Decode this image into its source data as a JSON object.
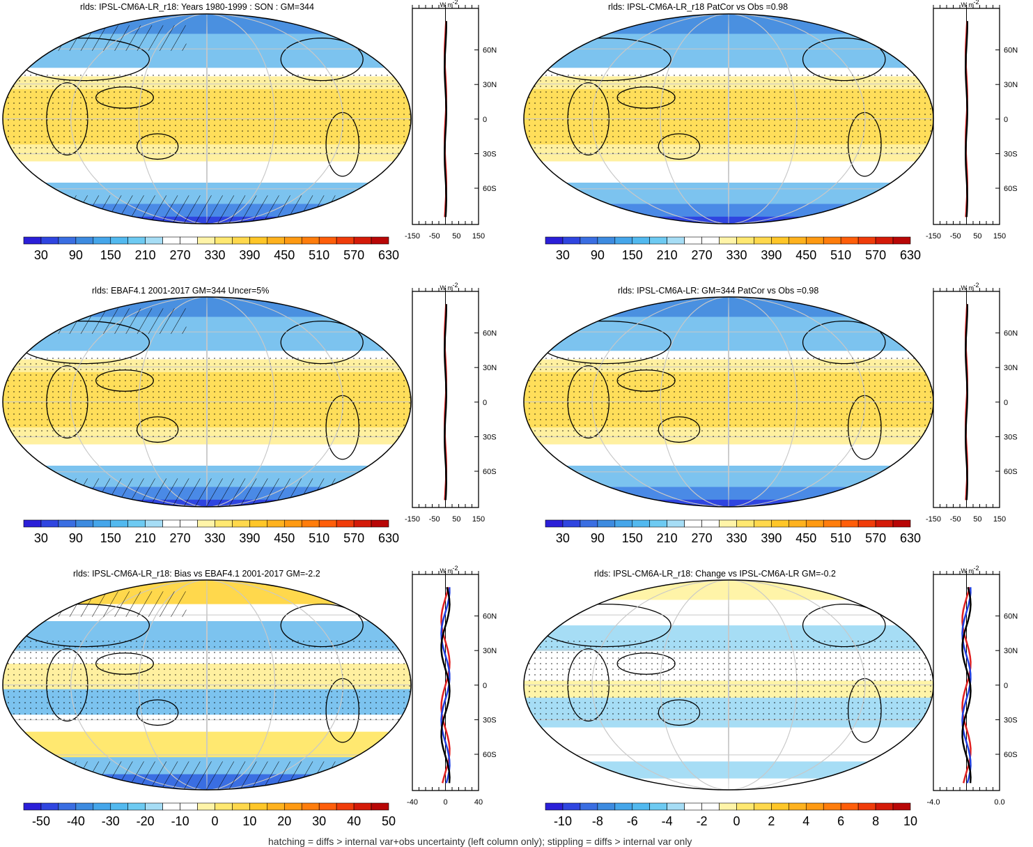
{
  "panels": [
    {
      "id": "model-mean",
      "title": "rlds: IPSL-CM6A-LR_r18: Years 1980-1999 : SON : GM=344",
      "kind": "absolute",
      "colorbar_key": "absolute",
      "profile": {
        "unit": "W m",
        "unit_sup": "-2",
        "x_ticks": [
          "-150",
          "-50",
          "50",
          "150"
        ],
        "lat_ticks": [
          "60N",
          "30N",
          "0",
          "30S",
          "60S"
        ],
        "lines": [
          {
            "color": "#e02020",
            "role": "obs"
          },
          {
            "color": "#000000",
            "role": "model"
          }
        ]
      }
    },
    {
      "id": "patcor-model",
      "title": "rlds: IPSL-CM6A-LR_r18 PatCor vs Obs =0.98",
      "kind": "absolute",
      "colorbar_key": "absolute",
      "profile": {
        "unit": "W m",
        "unit_sup": "-2",
        "x_ticks": [
          "-150",
          "-50",
          "50",
          "150"
        ],
        "lat_ticks": [
          "60N",
          "30N",
          "0",
          "30S",
          "60S"
        ],
        "lines": [
          {
            "color": "#e02020",
            "role": "obs"
          },
          {
            "color": "#000000",
            "role": "model"
          }
        ]
      }
    },
    {
      "id": "obs",
      "title": "rlds: EBAF4.1 2001-2017 GM=344 Uncer=5%",
      "kind": "absolute",
      "colorbar_key": "absolute",
      "profile": {
        "unit": "W m",
        "unit_sup": "-2",
        "x_ticks": [
          "-150",
          "-50",
          "50",
          "150"
        ],
        "lat_ticks": [
          "60N",
          "30N",
          "0",
          "30S",
          "60S"
        ],
        "lines": [
          {
            "color": "#e02020",
            "role": "obs"
          },
          {
            "color": "#000000",
            "role": "model"
          }
        ]
      }
    },
    {
      "id": "ensemble",
      "title": "rlds: IPSL-CM6A-LR: GM=344 PatCor vs Obs =0.98",
      "kind": "absolute",
      "colorbar_key": "absolute",
      "profile": {
        "unit": "W m",
        "unit_sup": "-2",
        "x_ticks": [
          "-150",
          "-50",
          "50",
          "150"
        ],
        "lat_ticks": [
          "60N",
          "30N",
          "0",
          "30S",
          "60S"
        ],
        "lines": [
          {
            "color": "#e02020",
            "role": "obs"
          },
          {
            "color": "#000000",
            "role": "model"
          }
        ]
      }
    },
    {
      "id": "bias",
      "title": "rlds: IPSL-CM6A-LR_r18: Bias vs EBAF4.1 2001-2017  GM=-2.2",
      "kind": "bias",
      "colorbar_key": "bias",
      "profile": {
        "unit": "W m",
        "unit_sup": "-2",
        "x_ticks": [
          "-40",
          "0",
          "40"
        ],
        "lat_ticks": [
          "60N",
          "30N",
          "0",
          "30S",
          "60S"
        ],
        "lines": [
          {
            "color": "#e02020",
            "role": "a"
          },
          {
            "color": "#1f3fe0",
            "role": "b"
          },
          {
            "color": "#000000",
            "role": "c"
          }
        ]
      }
    },
    {
      "id": "change",
      "title": "rlds: IPSL-CM6A-LR_r18: Change vs IPSL-CM6A-LR GM=-0.2",
      "kind": "change",
      "colorbar_key": "change",
      "profile": {
        "unit": "W m",
        "unit_sup": "-2",
        "x_ticks": [
          "-4.0",
          "0.0"
        ],
        "lat_ticks": [
          "60N",
          "30N",
          "0",
          "30S",
          "60S"
        ],
        "lines": [
          {
            "color": "#e02020",
            "role": "a"
          },
          {
            "color": "#1f3fe0",
            "role": "b"
          },
          {
            "color": "#000000",
            "role": "c"
          }
        ]
      }
    }
  ],
  "colorbars": {
    "absolute": {
      "labels": [
        "30",
        "90",
        "150",
        "210",
        "270",
        "330",
        "390",
        "450",
        "510",
        "570",
        "630"
      ],
      "colors": [
        "#2b1fd8",
        "#2f45e0",
        "#3a6ee2",
        "#3d8be0",
        "#45a6ea",
        "#52b9ef",
        "#6dcaf2",
        "#a6ddf5",
        "#ffffff",
        "#ffffff",
        "#fff4a8",
        "#ffe870",
        "#ffd84c",
        "#ffc628",
        "#ffb21e",
        "#ff9a12",
        "#ff7d0c",
        "#ff5e0a",
        "#f03c0a",
        "#d41a08",
        "#b80606"
      ]
    },
    "bias": {
      "labels": [
        "-50",
        "-40",
        "-30",
        "-20",
        "-10",
        "0",
        "10",
        "20",
        "30",
        "40",
        "50"
      ],
      "colors": [
        "#2b1fd8",
        "#2f45e0",
        "#3a6ee2",
        "#3d8be0",
        "#45a6ea",
        "#52b9ef",
        "#6dcaf2",
        "#a6ddf5",
        "#ffffff",
        "#ffffff",
        "#fff4a8",
        "#ffe870",
        "#ffd84c",
        "#ffc628",
        "#ffb21e",
        "#ff9a12",
        "#ff7d0c",
        "#ff5e0a",
        "#f03c0a",
        "#d41a08",
        "#b80606"
      ]
    },
    "change": {
      "labels": [
        "-10",
        "-8",
        "-6",
        "-4",
        "-2",
        "0",
        "2",
        "4",
        "6",
        "8",
        "10"
      ],
      "colors": [
        "#2b1fd8",
        "#2f45e0",
        "#3a6ee2",
        "#3d8be0",
        "#45a6ea",
        "#52b9ef",
        "#6dcaf2",
        "#a6ddf5",
        "#ffffff",
        "#ffffff",
        "#fff4a8",
        "#ffe870",
        "#ffd84c",
        "#ffc628",
        "#ffb21e",
        "#ff9a12",
        "#ff7d0c",
        "#ff5e0a",
        "#f03c0a",
        "#d41a08",
        "#b80606"
      ]
    }
  },
  "footer": "hatching = diffs > internal var+obs uncertainty (left column only); stippling = diffs > internal var only"
}
